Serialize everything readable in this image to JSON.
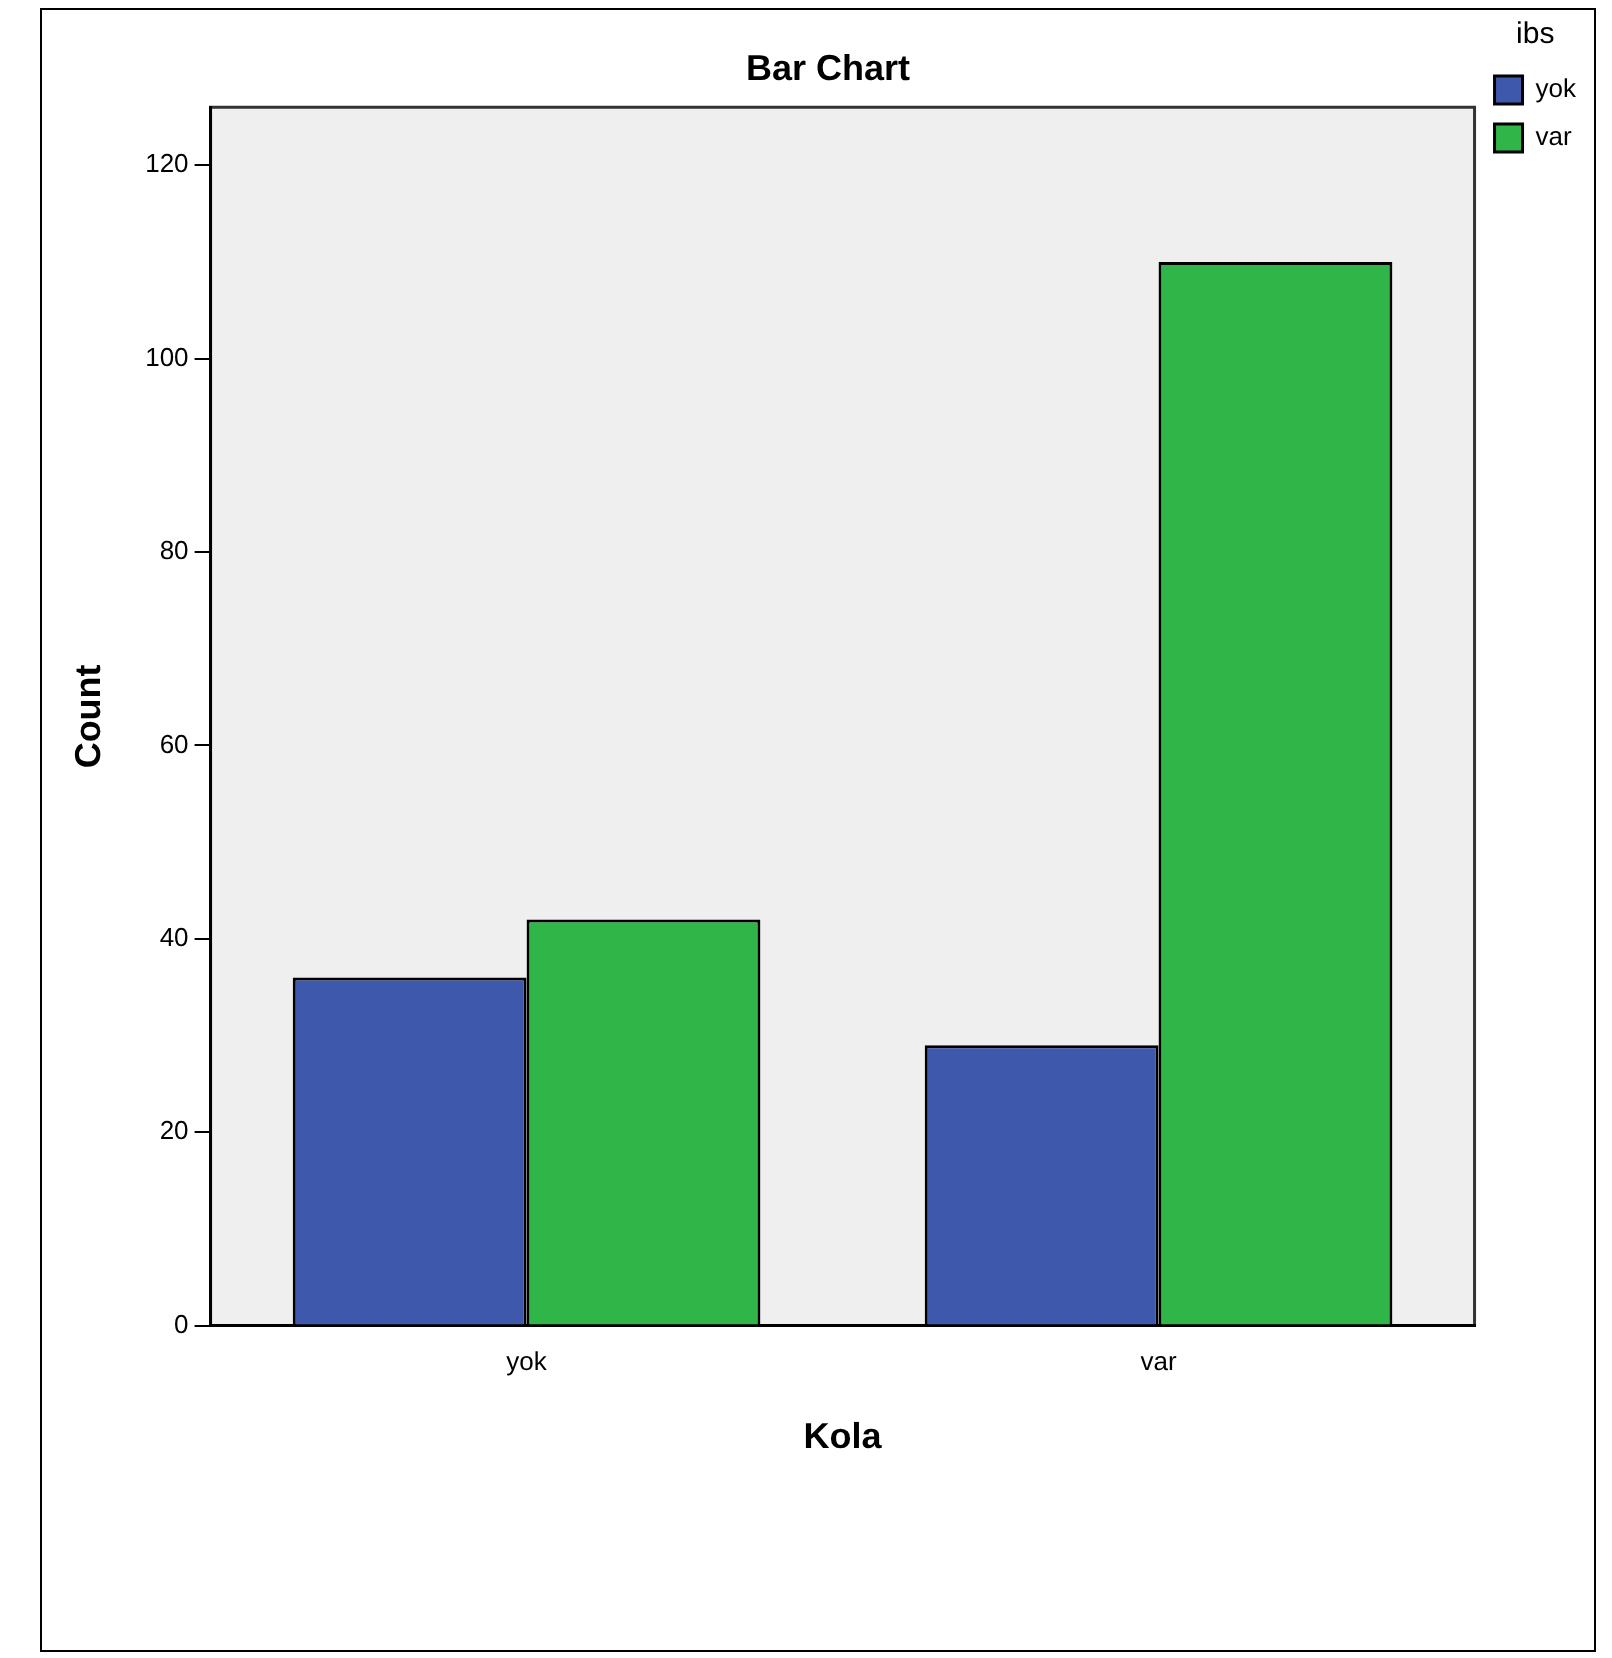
{
  "chart_data": {
    "type": "bar",
    "title": "Bar Chart",
    "xlabel": "Kola",
    "ylabel": "Count",
    "legend_title": "ibs",
    "categories": [
      "yok",
      "var"
    ],
    "series": [
      {
        "name": "yok",
        "color": "#3e58ac",
        "values": [
          36,
          29
        ]
      },
      {
        "name": "var",
        "color": "#2fb548",
        "values": [
          42,
          110
        ]
      }
    ],
    "ylim": [
      0,
      126
    ],
    "yticks": [
      0,
      20,
      40,
      60,
      80,
      100,
      120
    ],
    "grid": false,
    "legend": "top right"
  }
}
